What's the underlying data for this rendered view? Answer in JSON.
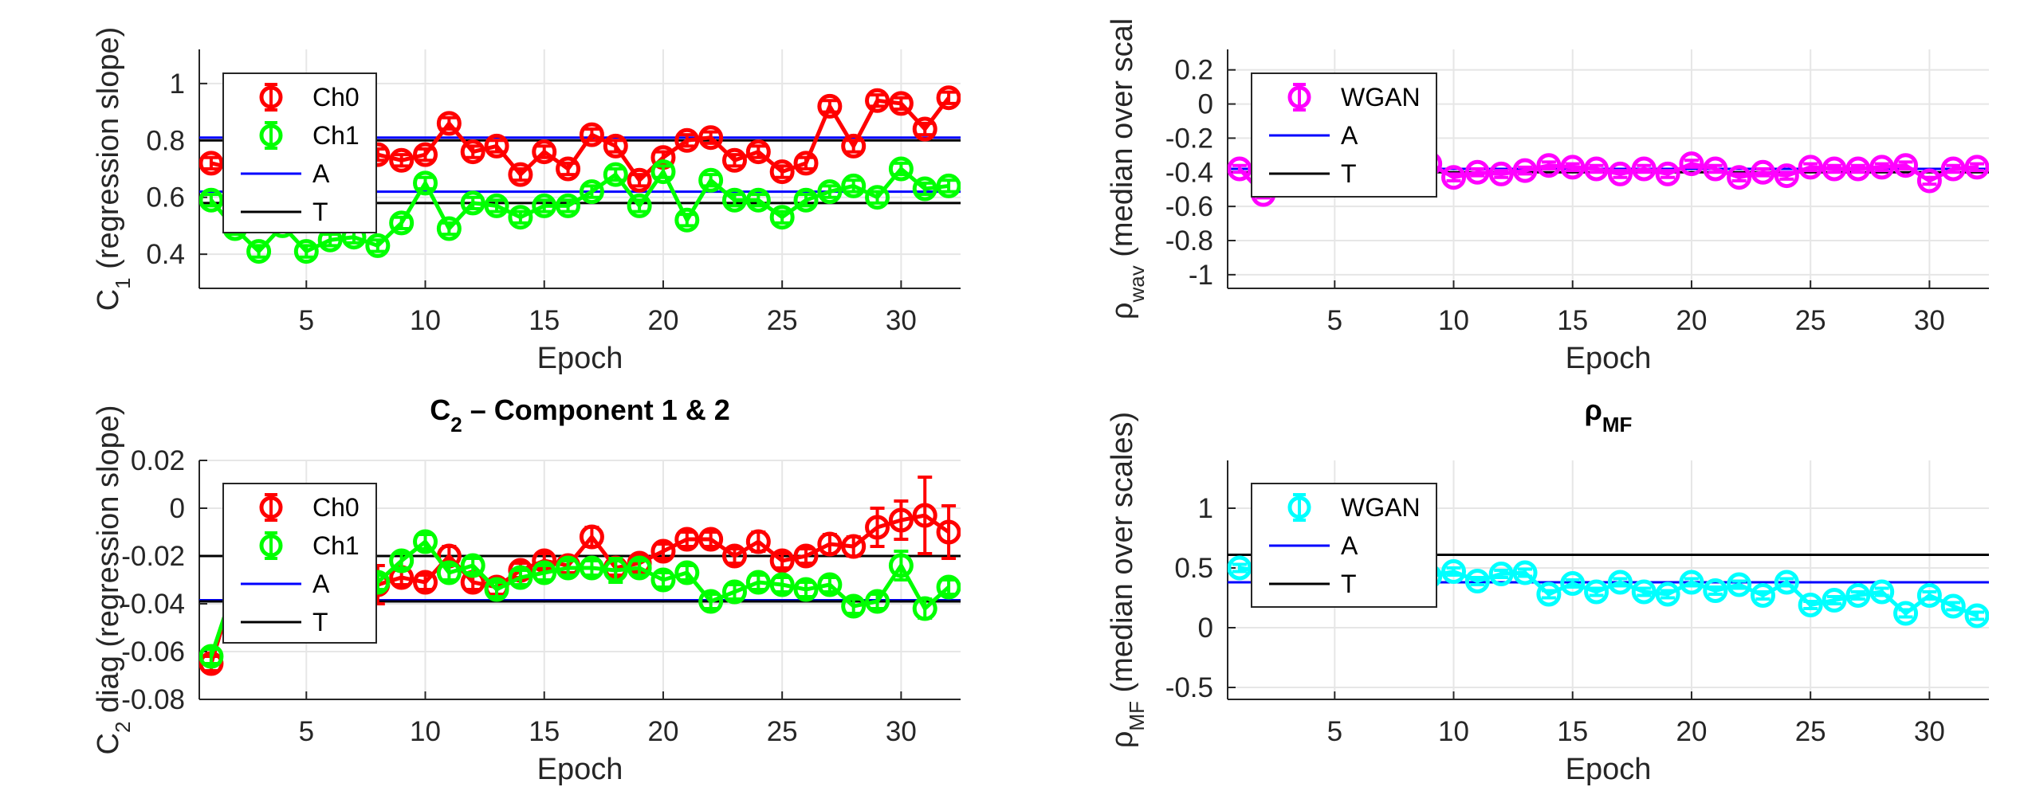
{
  "chart_data": [
    {
      "type": "line",
      "title": "",
      "xlabel": "Epoch",
      "ylabel_main": "C",
      "ylabel_sub": "1",
      "ylabel_rest": " (regression slope)",
      "xlim": [
        0.5,
        32.5
      ],
      "ylim": [
        0.28,
        1.12
      ],
      "xticks": [
        5,
        10,
        15,
        20,
        25,
        30
      ],
      "yticks": [
        0.4,
        0.6,
        0.8,
        1
      ],
      "ytick_labels": [
        "0.4",
        "0.6",
        "0.8",
        "1"
      ],
      "legend_placement": "top-left",
      "legend_entries": [
        "Ch0",
        "Ch1",
        "A",
        "T"
      ],
      "x": [
        1,
        2,
        3,
        4,
        5,
        6,
        7,
        8,
        9,
        10,
        11,
        12,
        13,
        14,
        15,
        16,
        17,
        18,
        19,
        20,
        21,
        22,
        23,
        24,
        25,
        26,
        27,
        28,
        29,
        30,
        31,
        32
      ],
      "series": [
        {
          "name": "Ch0",
          "color": "#ff0000",
          "errorbar": true,
          "values": [
            0.72,
            0.7,
            0.72,
            0.74,
            0.73,
            0.76,
            0.76,
            0.75,
            0.73,
            0.75,
            0.86,
            0.76,
            0.78,
            0.68,
            0.76,
            0.7,
            0.82,
            0.78,
            0.66,
            0.74,
            0.8,
            0.81,
            0.73,
            0.76,
            0.69,
            0.72,
            0.92,
            0.78,
            0.94,
            0.93,
            0.84,
            0.95
          ],
          "errors": [
            0.02,
            0.02,
            0.02,
            0.02,
            0.02,
            0.02,
            0.02,
            0.02,
            0.02,
            0.02,
            0.02,
            0.02,
            0.02,
            0.02,
            0.02,
            0.02,
            0.02,
            0.02,
            0.02,
            0.02,
            0.02,
            0.02,
            0.02,
            0.02,
            0.02,
            0.02,
            0.02,
            0.02,
            0.02,
            0.02,
            0.02,
            0.02
          ]
        },
        {
          "name": "Ch1",
          "color": "#00ff00",
          "errorbar": true,
          "values": [
            0.59,
            0.49,
            0.41,
            0.5,
            0.41,
            0.45,
            0.46,
            0.43,
            0.51,
            0.65,
            0.49,
            0.58,
            0.57,
            0.53,
            0.57,
            0.57,
            0.62,
            0.68,
            0.57,
            0.69,
            0.52,
            0.66,
            0.59,
            0.59,
            0.53,
            0.59,
            0.62,
            0.64,
            0.6,
            0.7,
            0.63,
            0.64
          ],
          "errors": [
            0.02,
            0.02,
            0.02,
            0.02,
            0.02,
            0.02,
            0.02,
            0.02,
            0.02,
            0.02,
            0.02,
            0.02,
            0.02,
            0.02,
            0.02,
            0.02,
            0.02,
            0.02,
            0.02,
            0.02,
            0.02,
            0.02,
            0.02,
            0.02,
            0.02,
            0.02,
            0.02,
            0.02,
            0.02,
            0.02,
            0.02,
            0.02
          ]
        }
      ],
      "hlines": [
        {
          "name": "A",
          "color": "#0000ff",
          "values": [
            0.81,
            0.62
          ]
        },
        {
          "name": "T",
          "color": "#000000",
          "values": [
            0.8,
            0.58
          ]
        }
      ]
    },
    {
      "type": "line",
      "title": "",
      "xlabel": "Epoch",
      "ylabel_main": "ρ",
      "ylabel_sub": "wav",
      "ylabel_rest": " (median over scal",
      "xlim": [
        0.5,
        32.5
      ],
      "ylim": [
        -1.08,
        0.32
      ],
      "xticks": [
        5,
        10,
        15,
        20,
        25,
        30
      ],
      "yticks": [
        -1,
        -0.8,
        -0.6,
        -0.4,
        -0.2,
        0,
        0.2
      ],
      "ytick_labels": [
        "-1",
        "-0.8",
        "-0.6",
        "-0.4",
        "-0.2",
        "0",
        "0.2"
      ],
      "legend_placement": "top-left",
      "legend_entries": [
        "WGAN",
        "A",
        "T"
      ],
      "x": [
        1,
        2,
        3,
        4,
        5,
        6,
        7,
        8,
        9,
        10,
        11,
        12,
        13,
        14,
        15,
        16,
        17,
        18,
        19,
        20,
        21,
        22,
        23,
        24,
        25,
        26,
        27,
        28,
        29,
        30,
        31,
        32
      ],
      "series": [
        {
          "name": "WGAN",
          "color": "#ff00ff",
          "errorbar": true,
          "values": [
            -0.38,
            -0.53,
            -0.4,
            -0.39,
            -0.4,
            -0.38,
            -0.39,
            -0.4,
            -0.35,
            -0.43,
            -0.4,
            -0.41,
            -0.39,
            -0.36,
            -0.37,
            -0.38,
            -0.41,
            -0.38,
            -0.41,
            -0.35,
            -0.38,
            -0.43,
            -0.4,
            -0.42,
            -0.37,
            -0.38,
            -0.38,
            -0.37,
            -0.36,
            -0.45,
            -0.38,
            -0.37
          ],
          "errors": [
            0.02,
            0.02,
            0.02,
            0.02,
            0.02,
            0.02,
            0.02,
            0.02,
            0.02,
            0.02,
            0.02,
            0.02,
            0.02,
            0.02,
            0.02,
            0.02,
            0.02,
            0.02,
            0.02,
            0.02,
            0.02,
            0.02,
            0.02,
            0.02,
            0.02,
            0.02,
            0.02,
            0.02,
            0.02,
            0.02,
            0.02,
            0.02
          ]
        }
      ],
      "hlines": [
        {
          "name": "A",
          "color": "#0000ff",
          "values": [
            -0.38
          ]
        },
        {
          "name": "T",
          "color": "#000000",
          "values": [
            -0.4
          ]
        }
      ]
    },
    {
      "type": "line",
      "title_main": "C",
      "title_sub": "2",
      "title_rest": " – Component 1 & 2",
      "xlabel": "Epoch",
      "ylabel_main": "C",
      "ylabel_sub": "2",
      "ylabel_rest": " diag (regression slope)",
      "xlim": [
        0.5,
        32.5
      ],
      "ylim": [
        -0.08,
        0.02
      ],
      "xticks": [
        5,
        10,
        15,
        20,
        25,
        30
      ],
      "yticks": [
        -0.08,
        -0.06,
        -0.04,
        -0.02,
        0,
        0.02
      ],
      "ytick_labels": [
        "-0.08",
        "-0.06",
        "-0.04",
        "-0.02",
        "0",
        "0.02"
      ],
      "legend_placement": "top-left",
      "legend_entries": [
        "Ch0",
        "Ch1",
        "A",
        "T"
      ],
      "x": [
        1,
        2,
        3,
        4,
        5,
        6,
        7,
        8,
        9,
        10,
        11,
        12,
        13,
        14,
        15,
        16,
        17,
        18,
        19,
        20,
        21,
        22,
        23,
        24,
        25,
        26,
        27,
        28,
        29,
        30,
        31,
        32
      ],
      "series": [
        {
          "name": "Ch0",
          "color": "#ff0000",
          "errorbar": true,
          "values": [
            -0.065,
            -0.032,
            -0.03,
            -0.031,
            -0.03,
            -0.029,
            -0.03,
            -0.032,
            -0.029,
            -0.031,
            -0.02,
            -0.031,
            -0.033,
            -0.026,
            -0.022,
            -0.024,
            -0.012,
            -0.025,
            -0.023,
            -0.018,
            -0.013,
            -0.013,
            -0.02,
            -0.014,
            -0.022,
            -0.02,
            -0.015,
            -0.016,
            -0.008,
            -0.005,
            -0.003,
            -0.01
          ],
          "errors": [
            0.003,
            0.003,
            0.003,
            0.003,
            0.003,
            0.003,
            0.003,
            0.008,
            0.003,
            0.003,
            0.004,
            0.003,
            0.003,
            0.003,
            0.003,
            0.003,
            0.004,
            0.003,
            0.003,
            0.003,
            0.003,
            0.003,
            0.003,
            0.004,
            0.003,
            0.003,
            0.004,
            0.004,
            0.008,
            0.008,
            0.016,
            0.011
          ]
        },
        {
          "name": "Ch1",
          "color": "#00ff00",
          "errorbar": true,
          "values": [
            -0.062,
            -0.032,
            -0.031,
            -0.031,
            -0.031,
            -0.03,
            -0.03,
            -0.031,
            -0.022,
            -0.014,
            -0.027,
            -0.024,
            -0.034,
            -0.029,
            -0.027,
            -0.025,
            -0.025,
            -0.026,
            -0.025,
            -0.03,
            -0.027,
            -0.039,
            -0.035,
            -0.031,
            -0.032,
            -0.034,
            -0.032,
            -0.041,
            -0.039,
            -0.024,
            -0.042,
            -0.033
          ],
          "errors": [
            0.003,
            0.003,
            0.003,
            0.003,
            0.003,
            0.003,
            0.003,
            0.003,
            0.003,
            0.003,
            0.003,
            0.003,
            0.003,
            0.003,
            0.003,
            0.003,
            0.003,
            0.005,
            0.003,
            0.003,
            0.003,
            0.003,
            0.003,
            0.003,
            0.003,
            0.003,
            0.003,
            0.003,
            0.003,
            0.006,
            0.004,
            0.003
          ]
        }
      ],
      "hlines": [
        {
          "name": "A",
          "color": "#0000ff",
          "values": [
            -0.02,
            -0.0385
          ]
        },
        {
          "name": "T",
          "color": "#000000",
          "values": [
            -0.02,
            -0.039
          ]
        }
      ]
    },
    {
      "type": "line",
      "title_main": "ρ",
      "title_sub": "MF",
      "title_rest": "",
      "xlabel": "Epoch",
      "ylabel_main": "ρ",
      "ylabel_sub": "MF",
      "ylabel_rest": " (median over scales)",
      "xlim": [
        0.5,
        32.5
      ],
      "ylim": [
        -0.6,
        1.4
      ],
      "xticks": [
        5,
        10,
        15,
        20,
        25,
        30
      ],
      "yticks": [
        -0.5,
        0,
        0.5,
        1
      ],
      "ytick_labels": [
        "-0.5",
        "0",
        "0.5",
        "1"
      ],
      "legend_placement": "top-left",
      "legend_entries": [
        "WGAN",
        "A",
        "T"
      ],
      "x": [
        1,
        2,
        3,
        4,
        5,
        6,
        7,
        8,
        9,
        10,
        11,
        12,
        13,
        14,
        15,
        16,
        17,
        18,
        19,
        20,
        21,
        22,
        23,
        24,
        25,
        26,
        27,
        28,
        29,
        30,
        31,
        32
      ],
      "series": [
        {
          "name": "WGAN",
          "color": "#00ffff",
          "errorbar": true,
          "values": [
            0.5,
            0.47,
            0.46,
            0.45,
            0.47,
            0.46,
            0.44,
            0.45,
            0.43,
            0.47,
            0.39,
            0.45,
            0.46,
            0.28,
            0.37,
            0.3,
            0.38,
            0.3,
            0.28,
            0.38,
            0.31,
            0.36,
            0.27,
            0.38,
            0.19,
            0.23,
            0.27,
            0.3,
            0.12,
            0.27,
            0.18,
            0.1
          ],
          "errors": [
            0.03,
            0.03,
            0.03,
            0.03,
            0.03,
            0.03,
            0.03,
            0.03,
            0.03,
            0.03,
            0.03,
            0.03,
            0.03,
            0.03,
            0.03,
            0.03,
            0.03,
            0.03,
            0.03,
            0.03,
            0.03,
            0.03,
            0.03,
            0.03,
            0.03,
            0.03,
            0.03,
            0.03,
            0.03,
            0.03,
            0.03,
            0.03
          ]
        }
      ],
      "hlines": [
        {
          "name": "A",
          "color": "#0000ff",
          "values": [
            0.38
          ]
        },
        {
          "name": "T",
          "color": "#000000",
          "values": [
            0.61
          ]
        }
      ]
    }
  ]
}
